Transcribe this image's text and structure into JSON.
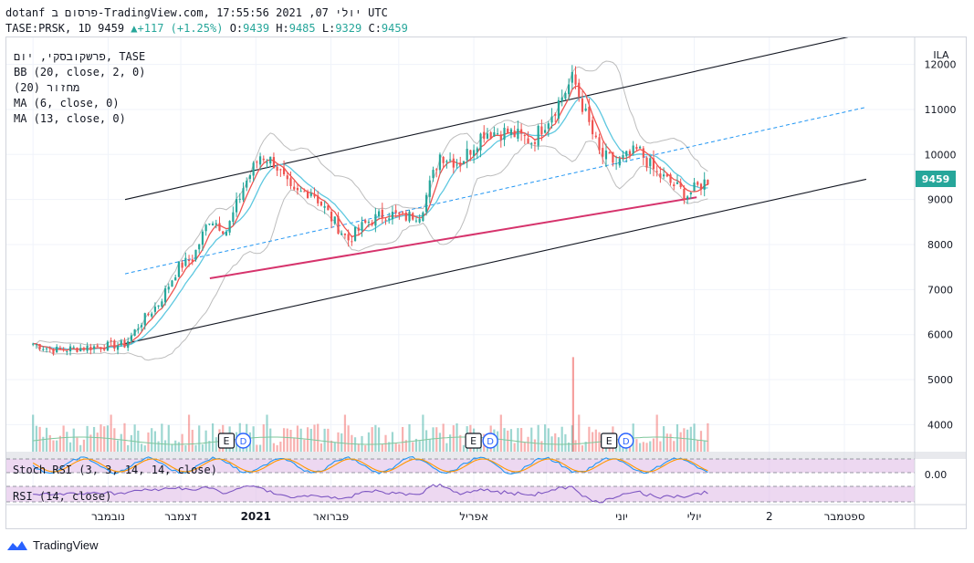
{
  "header": {
    "line1": "dotanf פרסום ב-TradingView.com, יולי 07, 2021 17:55:56 UTC",
    "symbol_interval": "TASE:PRSK, 1D",
    "last": "9459",
    "change": "+117 (+1.25%)",
    "o_label": "O:",
    "o": "9439",
    "h_label": "H:",
    "h": "9485",
    "l_label": "L:",
    "l": "9329",
    "c_label": "C:",
    "c": "9459"
  },
  "legend": [
    "פרשקובסקי, יום, TASE",
    "BB (20, close, 2, 0)",
    "מחזור (20)",
    "MA (6, close, 0)",
    "MA (13, close, 0)"
  ],
  "indicators": {
    "stoch_rsi": "Stoch RSI (3, 3, 14, 14, close)",
    "rsi": "RSI (14, close)"
  },
  "price_axis": {
    "currency": "ILA",
    "ticks": [
      "12000",
      "11000",
      "10000",
      "9000",
      "8000",
      "7000",
      "6000",
      "5000",
      "4000"
    ],
    "current_price_label": "9459",
    "stoch_value": "0.00"
  },
  "time_axis": {
    "ticks": [
      "נובמבר",
      "דצמבר",
      "2021",
      "פברואר",
      "אפריל",
      "יוני",
      "יולי",
      "2",
      "ספטמבר"
    ]
  },
  "events": [
    {
      "e": "E",
      "d": "D"
    },
    {
      "e": "E",
      "d": "D"
    },
    {
      "e": "E",
      "d": "D"
    }
  ],
  "footer": {
    "brand": "TradingView"
  },
  "colors": {
    "up": "#26a69a",
    "down": "#ef5350",
    "ma6": "#ef5350",
    "ma13": "#5ec8e0",
    "bb": "#bdbdbd",
    "channel": "#131722",
    "midline": "#2196f3",
    "support": "#d6336c",
    "volume_ma": "#7ec79b",
    "stoch_k": "#2196f3",
    "stoch_d": "#ff9800",
    "rsi": "#7e57c2",
    "indicator_band": "#e1bee7"
  },
  "chart_data": {
    "type": "candlestick",
    "symbol": "TASE:PRSK",
    "interval": "1D",
    "ylim": [
      3400,
      12600
    ],
    "close_path": [
      [
        "2020-10-01",
        5800
      ],
      [
        "2020-10-10",
        5650
      ],
      [
        "2020-10-20",
        5700
      ],
      [
        "2020-10-31",
        5750
      ],
      [
        "2020-11-08",
        5780
      ],
      [
        "2020-11-15",
        6300
      ],
      [
        "2020-11-22",
        6700
      ],
      [
        "2020-11-30",
        7500
      ],
      [
        "2020-12-06",
        7700
      ],
      [
        "2020-12-13",
        8600
      ],
      [
        "2020-12-20",
        8300
      ],
      [
        "2020-12-27",
        9300
      ],
      [
        "2021-01-03",
        10000
      ],
      [
        "2021-01-09",
        9800
      ],
      [
        "2021-01-16",
        9100
      ],
      [
        "2021-01-24",
        9200
      ],
      [
        "2021-02-01",
        8600
      ],
      [
        "2021-02-08",
        8100
      ],
      [
        "2021-02-16",
        8500
      ],
      [
        "2021-02-24",
        8700
      ],
      [
        "2021-03-03",
        8600
      ],
      [
        "2021-03-10",
        8700
      ],
      [
        "2021-03-18",
        10000
      ],
      [
        "2021-03-26",
        9800
      ],
      [
        "2021-04-05",
        10500
      ],
      [
        "2021-04-15",
        10500
      ],
      [
        "2021-04-25",
        10300
      ],
      [
        "2021-05-03",
        10900
      ],
      [
        "2021-05-12",
        11700
      ],
      [
        "2021-05-17",
        10900
      ],
      [
        "2021-05-23",
        10000
      ],
      [
        "2021-05-30",
        9800
      ],
      [
        "2021-06-08",
        10100
      ],
      [
        "2021-06-15",
        9600
      ],
      [
        "2021-06-23",
        9300
      ],
      [
        "2021-06-28",
        9100
      ],
      [
        "2021-07-07",
        9459
      ]
    ],
    "trendlines": [
      {
        "name": "channel_upper",
        "from": [
          "2020-11-08",
          9000
        ],
        "to": [
          "2021-09-10",
          12700
        ]
      },
      {
        "name": "channel_lower",
        "from": [
          "2020-11-08",
          5800
        ],
        "to": [
          "2021-09-10",
          9450
        ]
      },
      {
        "name": "channel_mid",
        "from": [
          "2020-11-08",
          7350
        ],
        "to": [
          "2021-09-10",
          11050
        ]
      },
      {
        "name": "support",
        "from": [
          "2020-12-13",
          7250
        ],
        "to": [
          "2021-07-02",
          9050
        ]
      }
    ],
    "volume_spikes": [
      [
        "2021-05-12",
        5500
      ]
    ],
    "current": {
      "open": 9439,
      "high": 9485,
      "low": 9329,
      "close": 9459,
      "change": 117,
      "change_pct": 1.25
    }
  }
}
